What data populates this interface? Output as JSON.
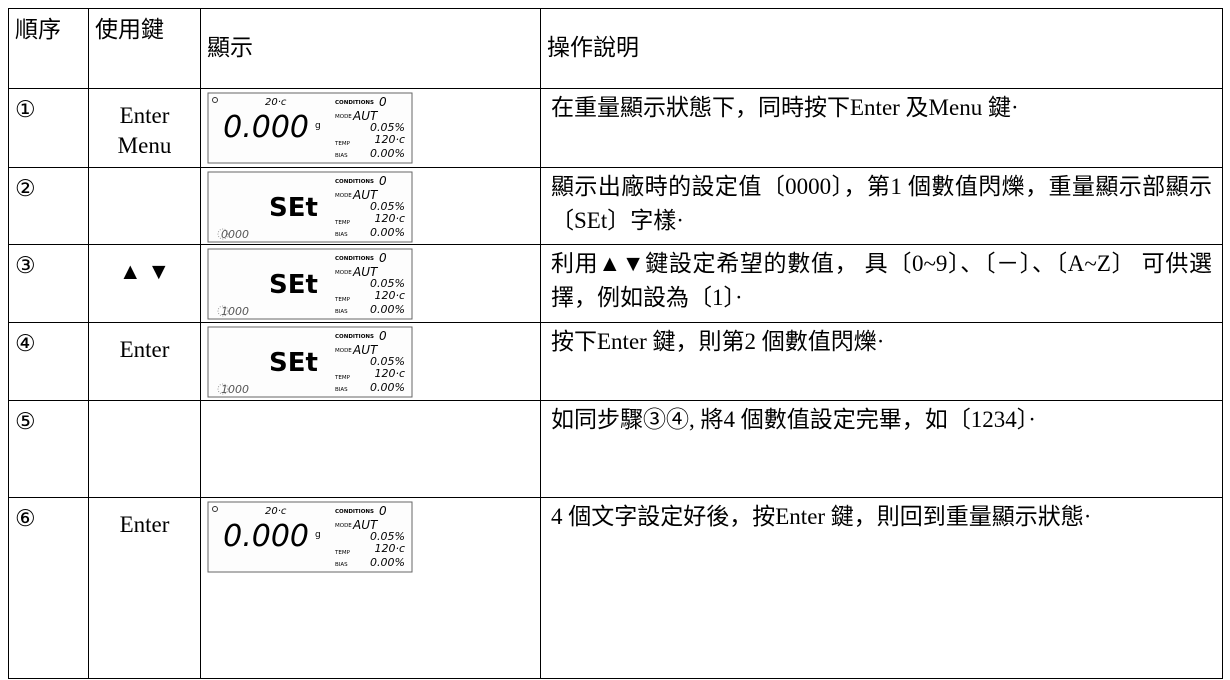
{
  "header": [
    "順序",
    "使用鍵",
    "顯示",
    "操作說明"
  ],
  "rows": [
    {
      "step": "①",
      "keys": [
        "Enter",
        "Menu"
      ],
      "display": {
        "kind": "weight",
        "temp": "20·c",
        "weight": "0.000",
        "unit": "g",
        "conditions_label": "CONDITIONS",
        "conditions": "0",
        "mode_label": "MODE",
        "mode": "AUT",
        "percent": "0.05%",
        "temp_label": "TEMP",
        "temp_set": "120·c",
        "bias_label": "BIAS",
        "bias": "0.00%"
      },
      "description": "在重量顯示狀態下，同時按下Enter 及Menu 鍵·"
    },
    {
      "step": "②",
      "display": {
        "kind": "set",
        "main": "SEt",
        "code": "0000",
        "conditions_label": "CONDITIONS",
        "conditions": "0",
        "mode_label": "MODE",
        "mode": "AUT",
        "percent": "0.05%",
        "temp_label": "TEMP",
        "temp_set": "120·c",
        "bias_label": "BIAS",
        "bias": "0.00%"
      },
      "description": "顯示出廠時的設定值〔0000〕，第1 個數值閃爍，重量顯示部顯示〔SEt〕字樣·"
    },
    {
      "step": "③",
      "keys": [
        "▲ ▼"
      ],
      "display": {
        "kind": "set",
        "main": "SEt",
        "code": "1000",
        "conditions_label": "CONDITIONS",
        "conditions": "0",
        "mode_label": "MODE",
        "mode": "AUT",
        "percent": "0.05%",
        "temp_label": "TEMP",
        "temp_set": "120·c",
        "bias_label": "BIAS",
        "bias": "0.00%"
      },
      "description": "利用▲▼鍵設定希望的數值， 具〔0~9〕、〔－〕、〔A~Z〕 可供選擇，例如設為〔1〕·"
    },
    {
      "step": "④",
      "keys": [
        "Enter"
      ],
      "display": {
        "kind": "set",
        "main": "SEt",
        "code": "1000",
        "conditions_label": "CONDITIONS",
        "conditions": "0",
        "mode_label": "MODE",
        "mode": "AUT",
        "percent": "0.05%",
        "temp_label": "TEMP",
        "temp_set": "120·c",
        "bias_label": "BIAS",
        "bias": "0.00%"
      },
      "description": "按下Enter 鍵，則第2 個數值閃爍·"
    },
    {
      "step": "⑤",
      "description": "如同步驟③④, 將4 個數值設定完畢，如〔1234〕·"
    },
    {
      "step": "⑥",
      "keys": [
        "Enter"
      ],
      "display": {
        "kind": "weight",
        "temp": "20·c",
        "weight": "0.000",
        "unit": "g",
        "conditions_label": "CONDITIONS",
        "conditions": "0",
        "mode_label": "MODE",
        "mode": "AUT",
        "percent": "0.05%",
        "temp_label": "TEMP",
        "temp_set": "120·c",
        "bias_label": "BIAS",
        "bias": "0.00%"
      },
      "description": "4 個文字設定好後，按Enter 鍵，則回到重量顯示狀態·"
    }
  ]
}
